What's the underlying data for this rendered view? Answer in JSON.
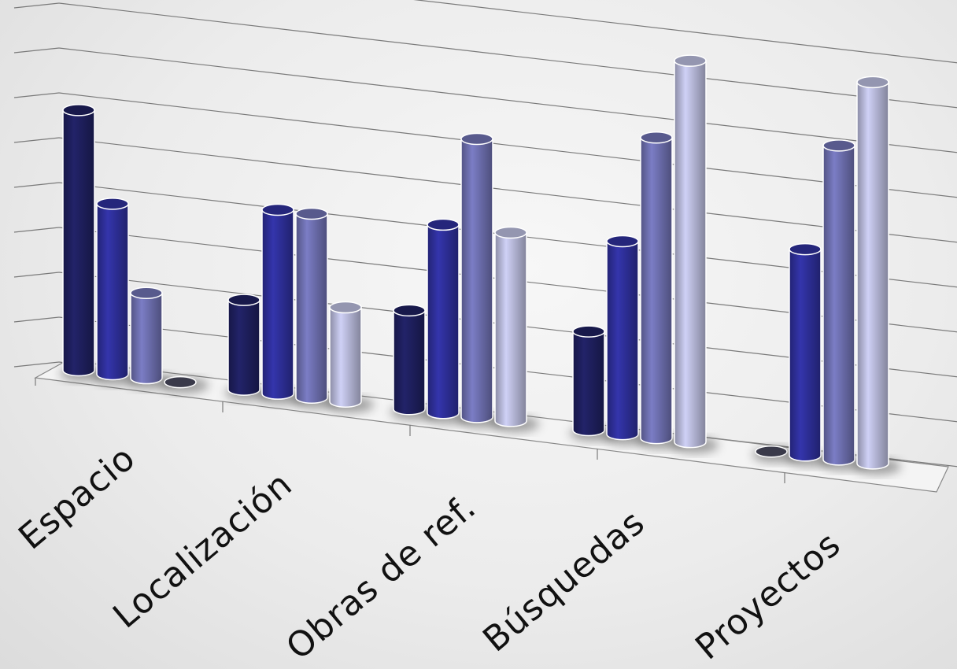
{
  "chart_data": {
    "type": "bar",
    "categories": [
      "Espacio",
      "Localización",
      "Obras de ref.",
      "Búsquedas",
      "Proyectos"
    ],
    "series": [
      {
        "values": [
          5.8,
          2.0,
          2.2,
          2.2,
          0
        ]
      },
      {
        "values": [
          3.8,
          4.1,
          4.2,
          4.3,
          4.6
        ]
      },
      {
        "values": [
          1.9,
          4.1,
          6.2,
          6.7,
          7.0
        ]
      },
      {
        "values": [
          0.0,
          2.1,
          4.2,
          8.5,
          8.5
        ]
      }
    ],
    "colors": [
      "#1e1f5e",
      "#2e2f9a",
      "#6e70b0",
      "#b9bbdc"
    ],
    "ylim": [
      0,
      9
    ],
    "grid": true,
    "legend": "none",
    "style": "3d-cylinder"
  }
}
